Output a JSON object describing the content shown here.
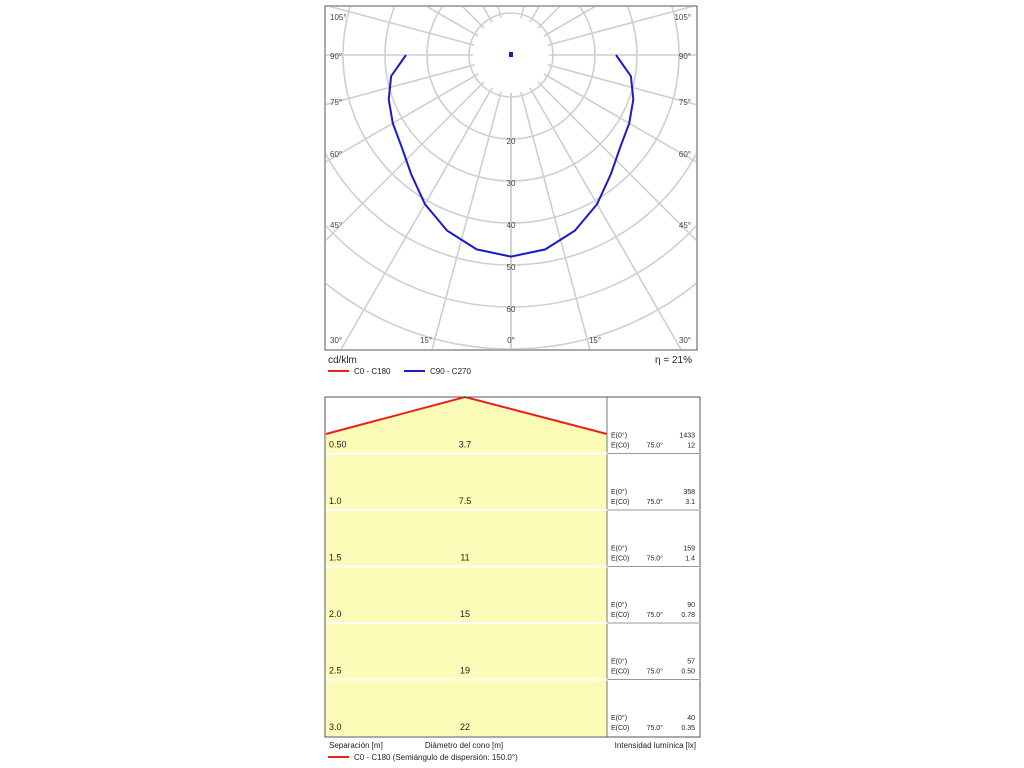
{
  "polar_chart": {
    "unit_label": "cd/klm",
    "efficiency_label": "η = 21%",
    "left_angle_labels": [
      "105°",
      "90°",
      "75°",
      "60°",
      "45°",
      "30°"
    ],
    "right_angle_labels": [
      "105°",
      "90°",
      "75°",
      "60°",
      "45°",
      "30°"
    ],
    "bottom_angle_labels": [
      "15°",
      "0°",
      "15°"
    ],
    "radial_labels": [
      "20",
      "30",
      "40",
      "50",
      "60"
    ],
    "legend": [
      {
        "label": "C0 - C180",
        "color": "#e8221b"
      },
      {
        "label": "C90 - C270",
        "color": "#1a1acb"
      }
    ]
  },
  "cone_table": {
    "rows": [
      {
        "separation": "0.50",
        "diameter": "3.7",
        "e0_label": "E(0°)",
        "e0": "1433",
        "ec0_label": "E(C0)",
        "ec0_angle": "75.0°",
        "ec0": "12"
      },
      {
        "separation": "1.0",
        "diameter": "7.5",
        "e0_label": "E(0°)",
        "e0": "358",
        "ec0_label": "E(C0)",
        "ec0_angle": "75.0°",
        "ec0": "3.1"
      },
      {
        "separation": "1.5",
        "diameter": "11",
        "e0_label": "E(0°)",
        "e0": "159",
        "ec0_label": "E(C0)",
        "ec0_angle": "75.0°",
        "ec0": "1.4"
      },
      {
        "separation": "2.0",
        "diameter": "15",
        "e0_label": "E(0°)",
        "e0": "90",
        "ec0_label": "E(C0)",
        "ec0_angle": "75.0°",
        "ec0": "0.78"
      },
      {
        "separation": "2.5",
        "diameter": "19",
        "e0_label": "E(0°)",
        "e0": "57",
        "ec0_label": "E(C0)",
        "ec0_angle": "75.0°",
        "ec0": "0.50"
      },
      {
        "separation": "3.0",
        "diameter": "22",
        "e0_label": "E(0°)",
        "e0": "40",
        "ec0_label": "E(C0)",
        "ec0_angle": "75.0°",
        "ec0": "0.35"
      }
    ],
    "footer_left": "Separación [m]",
    "footer_mid": "Diámetro del cono [m]",
    "footer_right": "Intensidad lumínica [lx]",
    "legend_label": "C0 - C180 (Semiángulo de dispersión: 150.0°)",
    "legend_color": "#e8221b",
    "fill_color": "#fdfbb8"
  },
  "chart_data": {
    "type": "polar",
    "unit": "cd/klm",
    "radial_ticks": [
      20,
      30,
      40,
      50,
      60
    ],
    "angle_ticks": [
      "0°",
      "15°",
      "30°",
      "45°",
      "60°",
      "75°",
      "90°",
      "105°"
    ],
    "series": [
      {
        "name": "C90 - C270",
        "color": "#1a1acb",
        "angles_deg": [
          0,
          10,
          20,
          30,
          40,
          50,
          60,
          70,
          80,
          90
        ],
        "values": [
          48.0,
          47.0,
          44.5,
          41.0,
          37.0,
          34.0,
          32.5,
          31.0,
          29.0,
          25.0
        ]
      }
    ]
  }
}
